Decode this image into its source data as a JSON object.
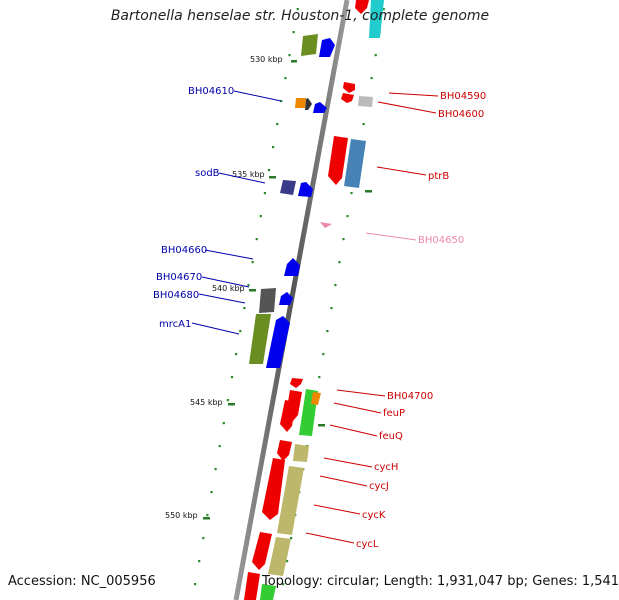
{
  "title": "Bartonella henselae str. Houston-1, complete genome",
  "accession": "Accession: NC_005956",
  "topology": "Topology: circular; Length: 1,931,047 bp; Genes: 1,541",
  "ticks": [
    "530 kbp",
    "535 kbp",
    "540 kbp",
    "545 kbp",
    "550 kbp"
  ],
  "colors": {
    "forward_label": "#0000aa",
    "reverse_label": "#cc0000",
    "rna_label": "#ee88aa"
  },
  "labels": [
    {
      "text": "BH04590",
      "side": "right",
      "color": "#cc0000"
    },
    {
      "text": "BH04600",
      "side": "right",
      "color": "#cc0000"
    },
    {
      "text": "BH04610",
      "side": "left",
      "color": "#0000aa"
    },
    {
      "text": "ptrB",
      "side": "right",
      "color": "#cc0000"
    },
    {
      "text": "sodB",
      "side": "left",
      "color": "#0000aa"
    },
    {
      "text": "BH04650",
      "side": "right",
      "color": "#ee88aa"
    },
    {
      "text": "BH04660",
      "side": "left",
      "color": "#0000aa"
    },
    {
      "text": "BH04670",
      "side": "left",
      "color": "#0000aa"
    },
    {
      "text": "BH04680",
      "side": "left",
      "color": "#0000aa"
    },
    {
      "text": "mrcA1",
      "side": "left",
      "color": "#0000aa"
    },
    {
      "text": "BH04700",
      "side": "right",
      "color": "#cc0000"
    },
    {
      "text": "feuP",
      "side": "right",
      "color": "#cc0000"
    },
    {
      "text": "feuQ",
      "side": "right",
      "color": "#cc0000"
    },
    {
      "text": "cycH",
      "side": "right",
      "color": "#cc0000"
    },
    {
      "text": "cycJ",
      "side": "right",
      "color": "#cc0000"
    },
    {
      "text": "cycK",
      "side": "right",
      "color": "#cc0000"
    },
    {
      "text": "cycL",
      "side": "right",
      "color": "#cc0000"
    }
  ]
}
